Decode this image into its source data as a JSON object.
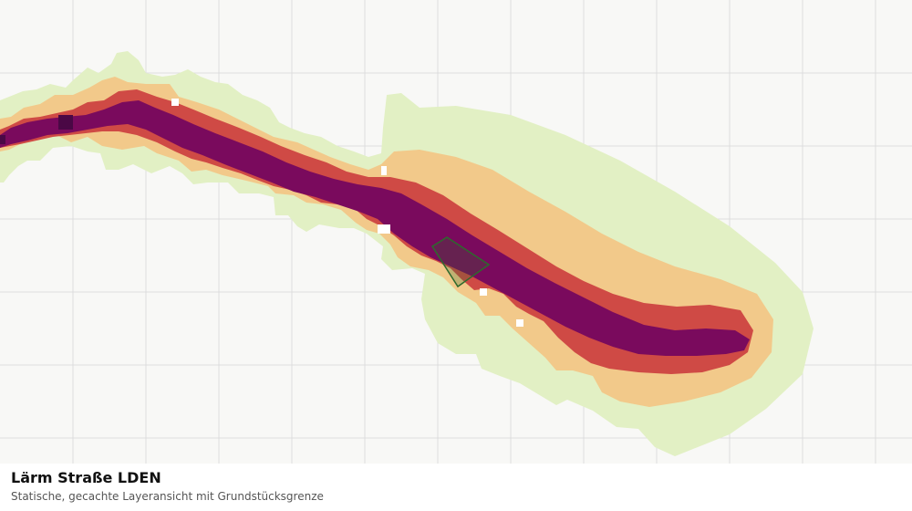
{
  "layer": {
    "title": "Lärm Straße LDEN",
    "subtitle": "Statische, gecachte Layeransicht mit Grundstücksgrenze"
  },
  "legend_colors": {
    "band_lowest": "#e2f0c4",
    "band_low": "#f2c98a",
    "band_mid": "#cf4a45",
    "band_high": "#7a0a5d",
    "band_highest": "#4a0845",
    "parcel_outline": "#2d6a2d",
    "grid_line": "#dcdcdc"
  }
}
